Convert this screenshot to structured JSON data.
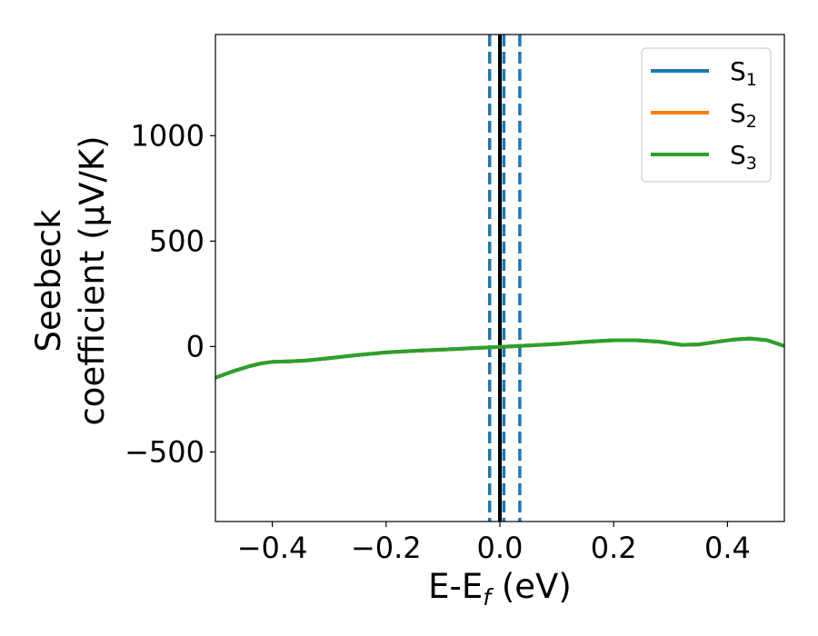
{
  "chart_data": {
    "type": "line",
    "title": "",
    "xlabel": "E-E",
    "xlabel_sub": "f",
    "xlabel_unit": " (eV)",
    "ylabel_line1": "Seebeck",
    "ylabel_line2": "coefficient  (μV/K)",
    "xlim": [
      -0.5,
      0.5
    ],
    "ylim": [
      -830,
      1480
    ],
    "xticks": [
      {
        "value": -0.4,
        "label": "−0.4"
      },
      {
        "value": -0.2,
        "label": "−0.2"
      },
      {
        "value": 0.0,
        "label": "0.0"
      },
      {
        "value": 0.2,
        "label": "0.2"
      },
      {
        "value": 0.4,
        "label": "0.4"
      }
    ],
    "yticks": [
      {
        "value": -500,
        "label": "−500"
      },
      {
        "value": 0,
        "label": "0"
      },
      {
        "value": 500,
        "label": "500"
      },
      {
        "value": 1000,
        "label": "1000"
      }
    ],
    "grid": false,
    "legend_position": "top-right",
    "x": [
      -0.5,
      -0.47,
      -0.44,
      -0.42,
      -0.4,
      -0.37,
      -0.34,
      -0.3,
      -0.25,
      -0.2,
      -0.15,
      -0.1,
      -0.05,
      0.0,
      0.05,
      0.1,
      0.15,
      0.2,
      0.24,
      0.28,
      0.3,
      0.32,
      0.35,
      0.38,
      0.41,
      0.44,
      0.47,
      0.5
    ],
    "series": [
      {
        "name": "S",
        "sub": "1",
        "color": "#1f77b4",
        "y": [
          -148,
          -118,
          -93,
          -80,
          -73,
          -70,
          -66,
          -55,
          -40,
          -28,
          -20,
          -14,
          -8,
          -2,
          5,
          12,
          22,
          30,
          30,
          23,
          15,
          8,
          10,
          22,
          33,
          38,
          30,
          2
        ]
      },
      {
        "name": "S",
        "sub": "2",
        "color": "#ff7f0e",
        "y": [
          -148,
          -118,
          -93,
          -80,
          -73,
          -70,
          -66,
          -55,
          -40,
          -28,
          -20,
          -14,
          -8,
          -2,
          5,
          12,
          22,
          30,
          30,
          23,
          15,
          8,
          10,
          22,
          33,
          38,
          30,
          2
        ]
      },
      {
        "name": "S",
        "sub": "3",
        "color": "#2ca02c",
        "y": [
          -148,
          -118,
          -93,
          -80,
          -73,
          -70,
          -66,
          -55,
          -40,
          -28,
          -20,
          -14,
          -8,
          -2,
          5,
          12,
          22,
          30,
          30,
          23,
          15,
          8,
          10,
          22,
          33,
          38,
          30,
          2
        ]
      }
    ],
    "vlines": [
      {
        "x": 0.0,
        "color": "#000000",
        "style": "solid"
      },
      {
        "x": -0.018,
        "color": "#1f77b4",
        "style": "dashed"
      },
      {
        "x": 0.007,
        "color": "#1f77b4",
        "style": "dashed"
      },
      {
        "x": 0.035,
        "color": "#1f77b4",
        "style": "dashed"
      }
    ]
  }
}
